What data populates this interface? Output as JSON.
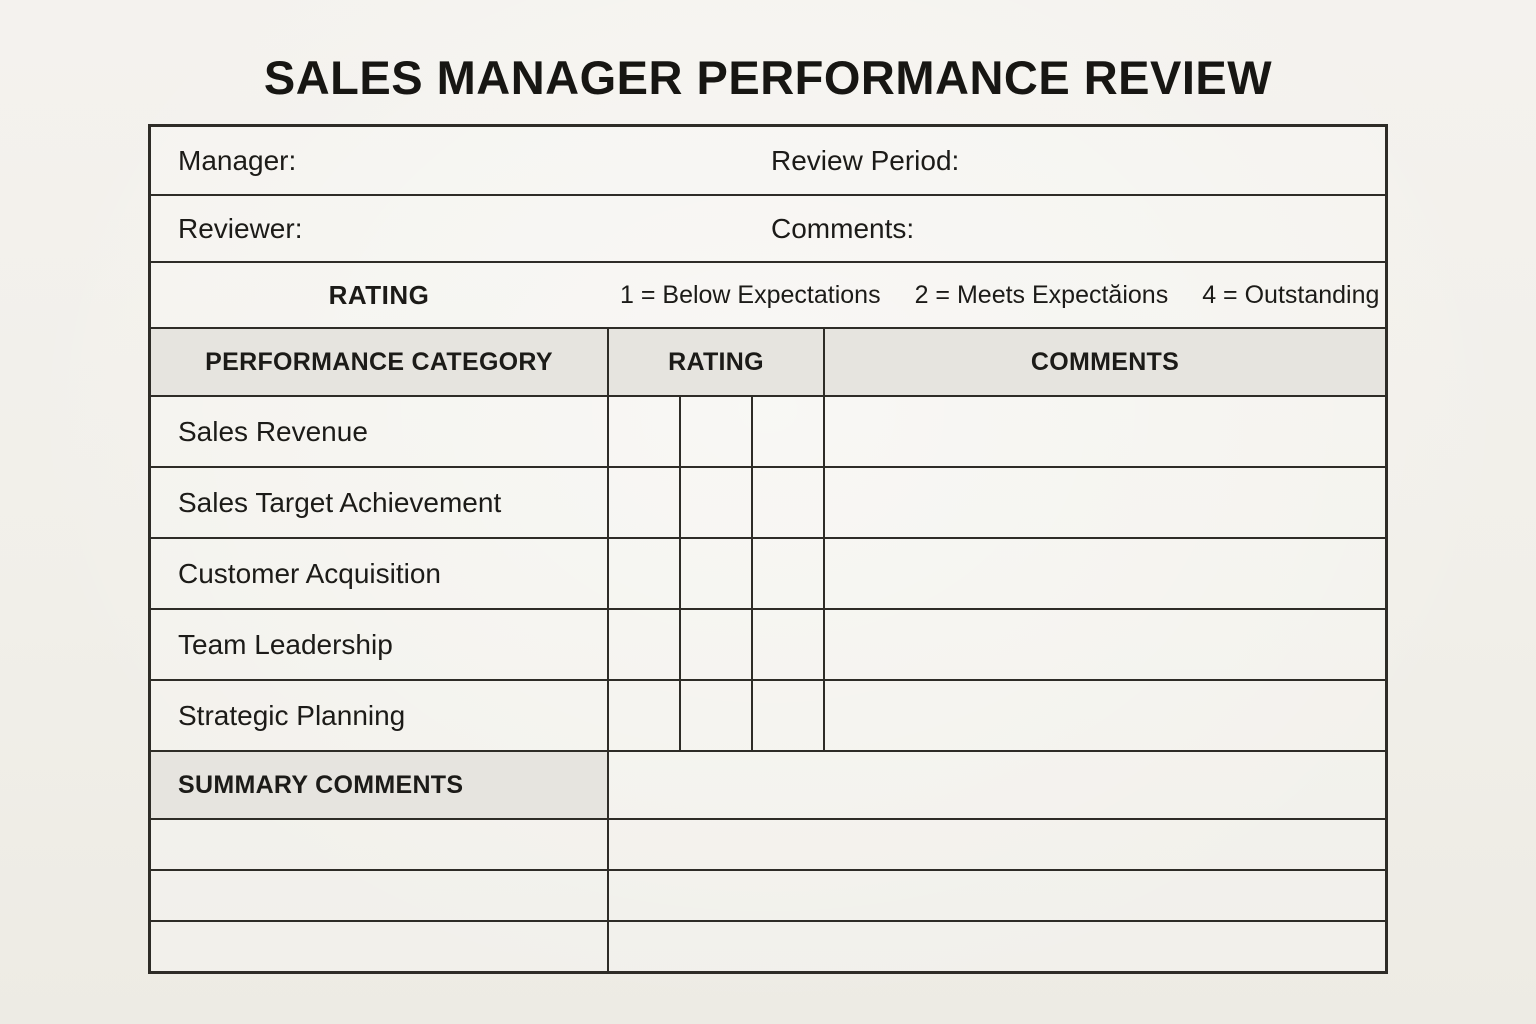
{
  "page": {
    "title": "SALES MANAGER PERFORMANCE REVIEW"
  },
  "info": {
    "manager_label": "Manager:",
    "review_period_label": "Review Period:",
    "reviewer_label": "Reviewer:",
    "comments_label": "Comments:"
  },
  "rating_legend": {
    "label": "RATING",
    "items": [
      "1 = Below Expectations",
      "2 = Meets Expectăions",
      "4 = Outstanding"
    ]
  },
  "table": {
    "headers": {
      "category": "PERFORMANCE CATEGORY",
      "rating": "RATING",
      "comments": "COMMENTS"
    },
    "categories": [
      "Sales Revenue",
      "Sales Target Achievement",
      "Customer Acquisition",
      "Team Leadership",
      "Strategic Planning"
    ],
    "summary_label": "SUMMARY COMMENTS"
  }
}
